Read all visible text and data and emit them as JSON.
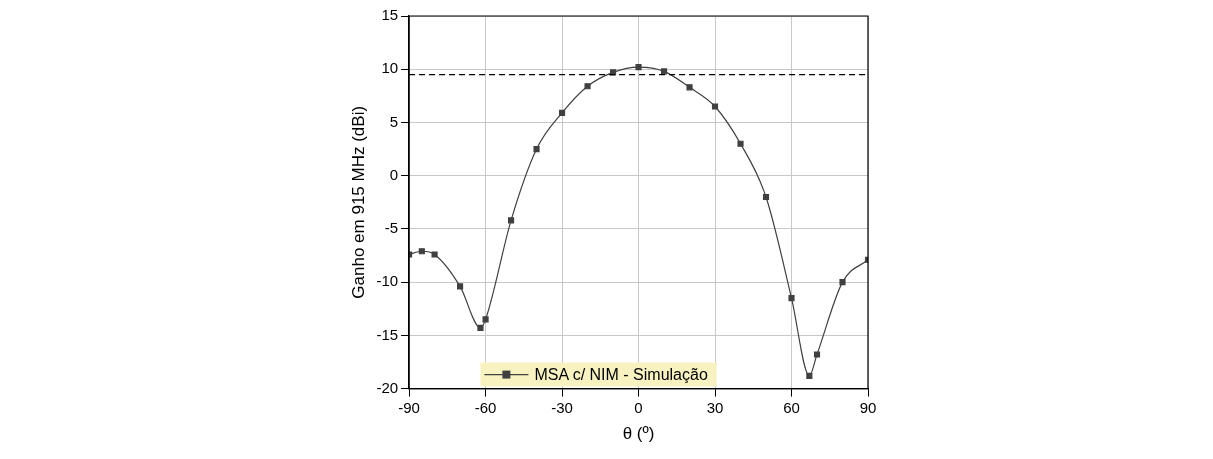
{
  "chart_data": {
    "type": "line",
    "xlabel": "θ (º)",
    "ylabel": "Ganho em 915 MHz (dBi)",
    "x": [
      -90,
      -85,
      -80,
      -70,
      -62,
      -60,
      -50,
      -40,
      -30,
      -20,
      -10,
      0,
      10,
      20,
      30,
      40,
      50,
      60,
      67,
      70,
      80,
      90
    ],
    "series": [
      {
        "name": "MSA c/ NIM - Simulação",
        "color": "#404040",
        "values": [
          -7.4,
          -7.1,
          -7.4,
          -10.4,
          -14.3,
          -13.5,
          -4.2,
          2.5,
          5.9,
          8.4,
          9.7,
          10.2,
          9.8,
          8.3,
          6.5,
          3.0,
          -2.0,
          -11.5,
          -18.8,
          -16.8,
          -10.0,
          -7.9
        ]
      }
    ],
    "xlim": [
      -90,
      90
    ],
    "xticks": [
      -90,
      -60,
      -30,
      0,
      30,
      60,
      90
    ],
    "ylim": [
      -20,
      15
    ],
    "yticks": [
      -20,
      -15,
      -10,
      -5,
      0,
      5,
      10,
      15
    ],
    "ref_lines": [
      {
        "axis": "y",
        "value": 9.5,
        "line_style": "dashed",
        "color": "#000000"
      }
    ],
    "grid": true,
    "legend": "bottom",
    "marker": "square",
    "line_style": "solid"
  }
}
